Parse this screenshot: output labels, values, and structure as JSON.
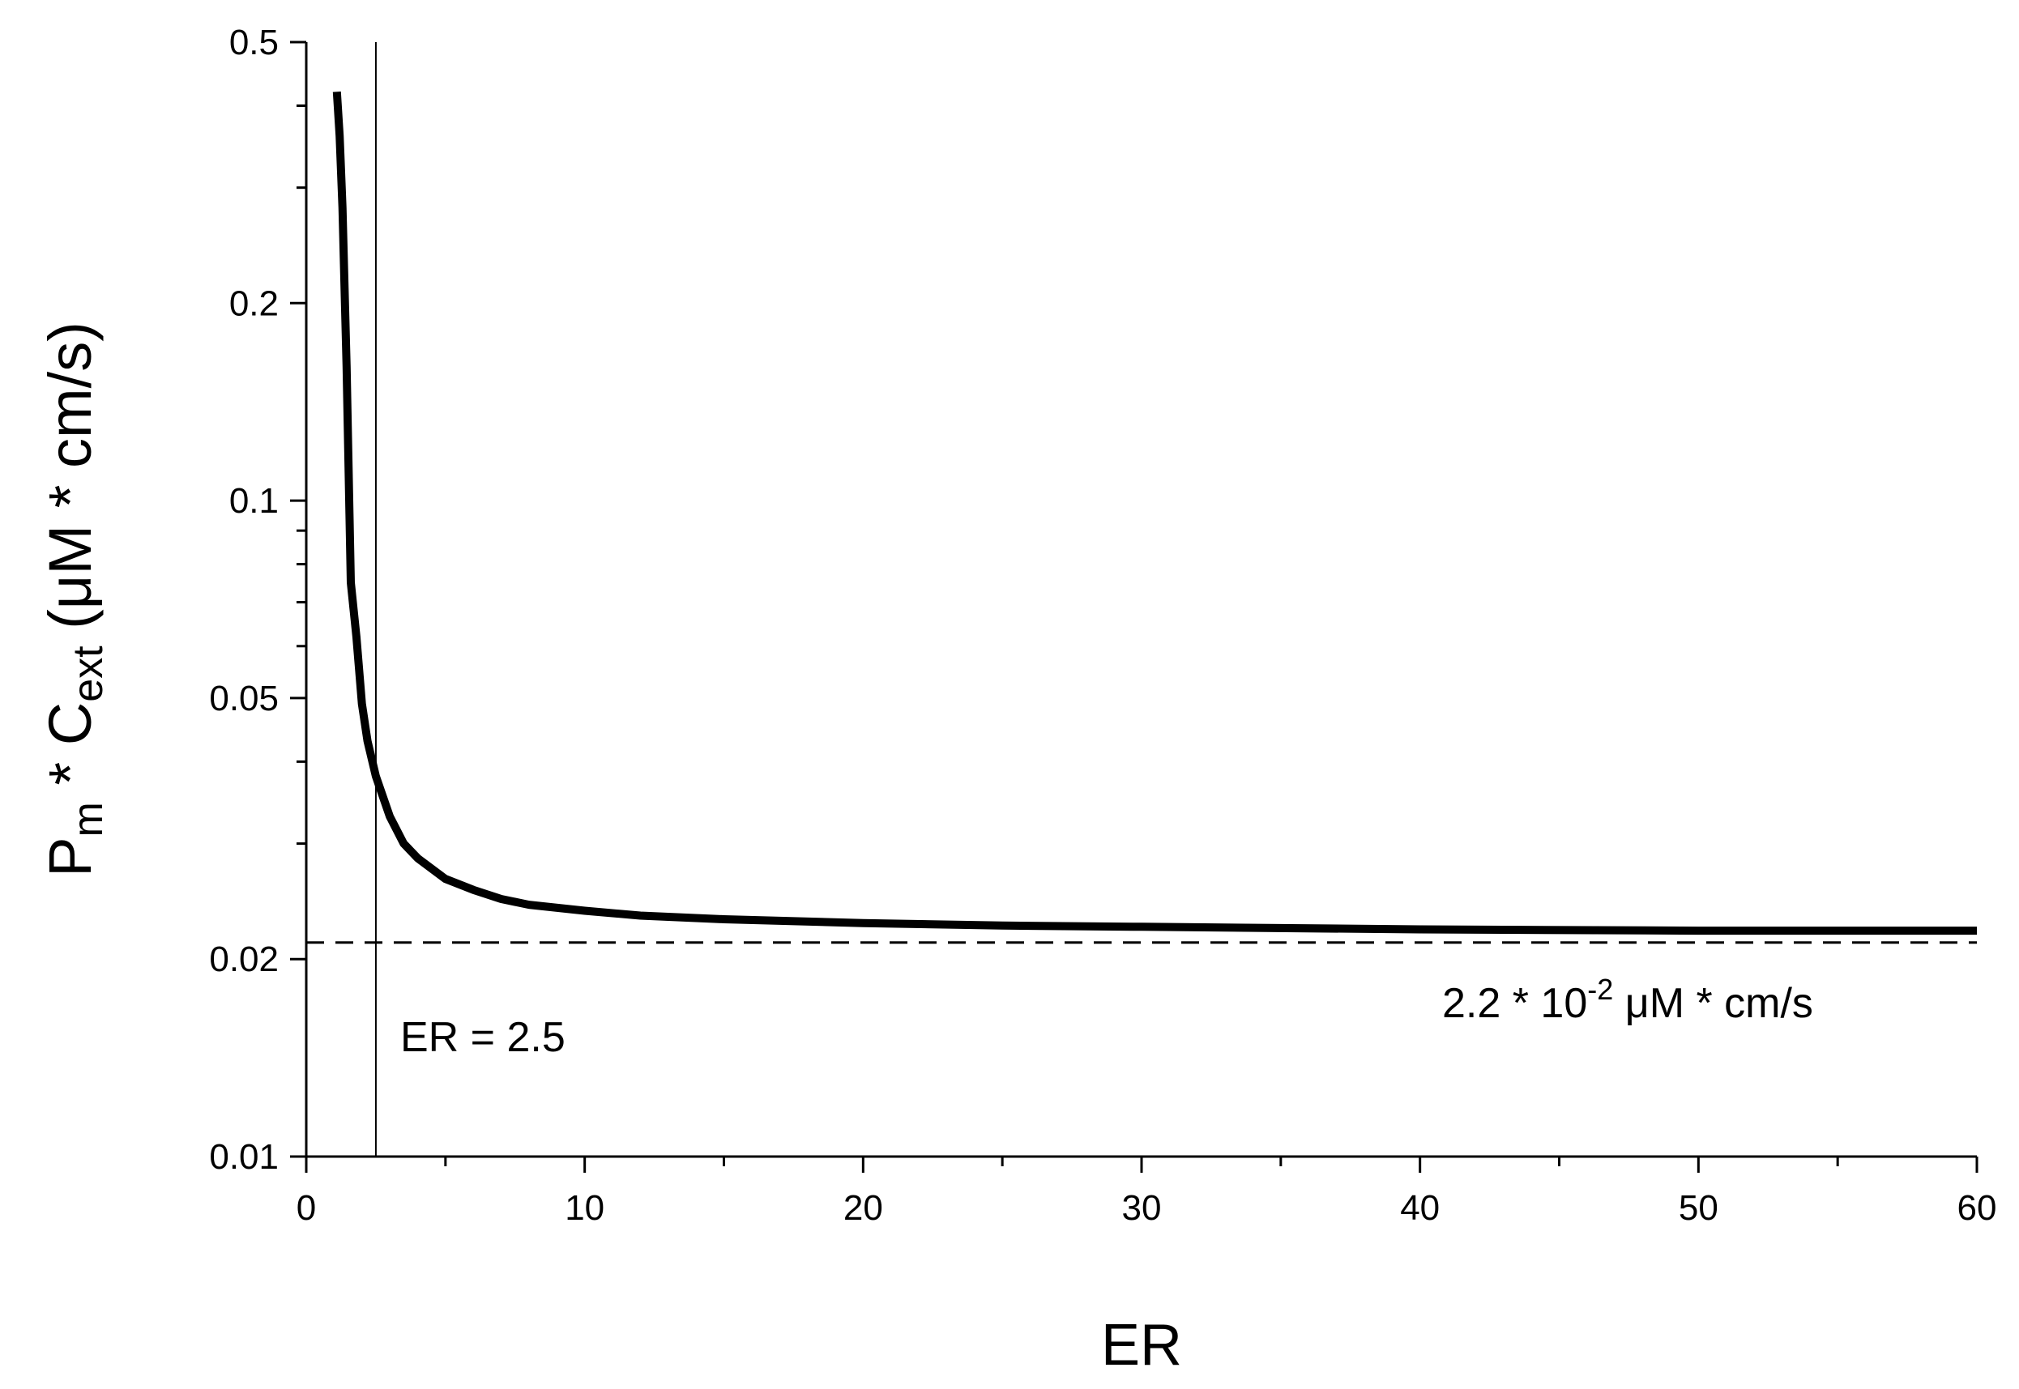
{
  "chart_data": {
    "type": "line",
    "title": "",
    "xlabel": "ER",
    "ylabel": {
      "main": "P",
      "sub1": "m",
      "mid": " * C",
      "sub2": "ext",
      "tail": " (μM * cm/s)"
    },
    "xlim": [
      0,
      60
    ],
    "ylim": [
      0.01,
      0.5
    ],
    "y_scale": "log",
    "grid": false,
    "x_ticks": [
      0,
      10,
      20,
      30,
      40,
      50,
      60
    ],
    "x_tick_labels": [
      "0",
      "10",
      "20",
      "30",
      "40",
      "50",
      "60"
    ],
    "y_ticks": [
      0.01,
      0.02,
      0.05,
      0.1,
      0.2,
      0.5
    ],
    "y_tick_labels": [
      "0.01",
      "0.02",
      "0.05",
      "0.1",
      "0.2",
      "0.5"
    ],
    "series": [
      {
        "x": [
          1.1,
          1.2,
          1.3,
          1.45,
          1.6,
          1.8,
          2.0,
          2.2,
          2.5,
          3.0,
          3.5,
          4.0,
          5.0,
          6.0,
          7.0,
          8.0,
          10.0,
          12.0,
          15.0,
          20.0,
          25.0,
          30.0,
          40.0,
          50.0,
          60.0
        ],
        "y": [
          0.42,
          0.36,
          0.28,
          0.16,
          0.075,
          0.062,
          0.049,
          0.043,
          0.038,
          0.033,
          0.03,
          0.0285,
          0.0265,
          0.0255,
          0.0247,
          0.0242,
          0.0237,
          0.0233,
          0.023,
          0.0227,
          0.0225,
          0.0224,
          0.0222,
          0.0221,
          0.0221
        ],
        "color": "#000000"
      }
    ],
    "reference_lines": [
      {
        "orientation": "vertical",
        "value": 2.5,
        "style": "solid",
        "label": "ER = 2.5"
      },
      {
        "orientation": "horizontal",
        "value": 0.0212,
        "style": "dashed",
        "label_main": "2.2 * 10",
        "label_sup": "-2",
        "label_tail": " μM * cm/s"
      }
    ]
  }
}
